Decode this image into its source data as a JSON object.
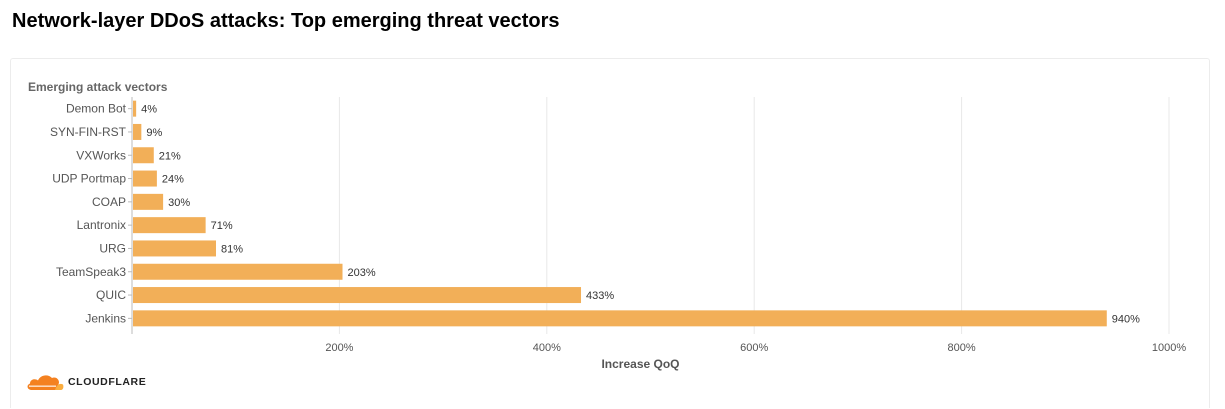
{
  "page": {
    "title": "Network-layer DDoS attacks: Top emerging threat vectors",
    "brand": "CLOUDFLARE"
  },
  "colors": {
    "bar": "#f2af58",
    "grid": "#e8e8e8",
    "axis_text": "#555555",
    "label_text": "#333333",
    "subtitle_text": "#666666",
    "logo_orange": "#f48120",
    "logo_light_orange": "#faad3f"
  },
  "icons": {
    "logo": "cloudflare-cloud-icon"
  },
  "chart_data": {
    "type": "bar",
    "orientation": "horizontal",
    "title": "Emerging attack vectors",
    "xlabel": "Increase QoQ",
    "ylabel": "",
    "categories": [
      "Demon Bot",
      "SYN-FIN-RST",
      "VXWorks",
      "UDP Portmap",
      "COAP",
      "Lantronix",
      "URG",
      "TeamSpeak3",
      "QUIC",
      "Jenkins"
    ],
    "values": [
      4,
      9,
      21,
      24,
      30,
      71,
      81,
      203,
      433,
      940
    ],
    "value_labels": [
      "4%",
      "9%",
      "21%",
      "24%",
      "30%",
      "71%",
      "81%",
      "203%",
      "433%",
      "940%"
    ],
    "xlim": [
      0,
      1000
    ],
    "xticks": [
      200,
      400,
      600,
      800,
      1000
    ],
    "xtick_labels": [
      "200%",
      "400%",
      "600%",
      "800%",
      "1000%"
    ],
    "grid": true
  }
}
